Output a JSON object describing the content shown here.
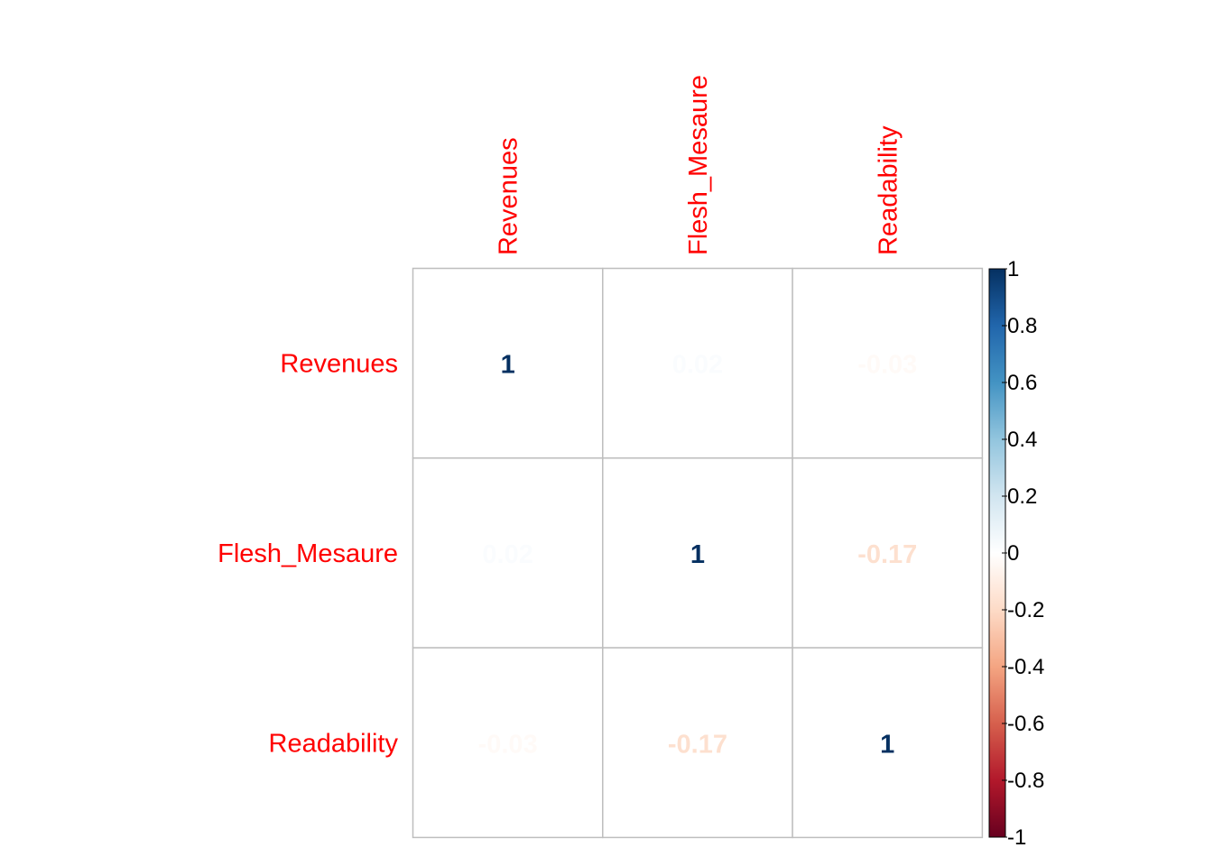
{
  "chart_data": {
    "type": "heatmap",
    "method": "number",
    "variables": [
      "Revenues",
      "Flesh_Mesaure",
      "Readability"
    ],
    "matrix": [
      [
        1,
        0.02,
        -0.03
      ],
      [
        0.02,
        1,
        -0.17
      ],
      [
        -0.03,
        -0.17,
        1
      ]
    ],
    "value_labels": [
      [
        "1",
        "0.02",
        "-0.03"
      ],
      [
        "0.02",
        "1",
        "-0.17"
      ],
      [
        "-0.03",
        "-0.17",
        "1"
      ]
    ],
    "label_color": "#FF0000",
    "grid_color": "#BEBEBE",
    "colorbar": {
      "range": [
        -1,
        1
      ],
      "ticks": [
        1,
        0.8,
        0.6,
        0.4,
        0.2,
        0,
        -0.2,
        -0.4,
        -0.6,
        -0.8,
        -1
      ],
      "tick_labels": [
        "1",
        "0.8",
        "0.6",
        "0.4",
        "0.2",
        "0",
        "-0.2",
        "-0.4",
        "-0.6",
        "-0.8",
        "-1"
      ],
      "palette": [
        "#67001F",
        "#B2182B",
        "#D6604D",
        "#F4A582",
        "#FDDBC7",
        "#FFFFFF",
        "#D1E5F0",
        "#92C5DE",
        "#4393C3",
        "#2166AC",
        "#053061"
      ],
      "placement": "right"
    }
  }
}
